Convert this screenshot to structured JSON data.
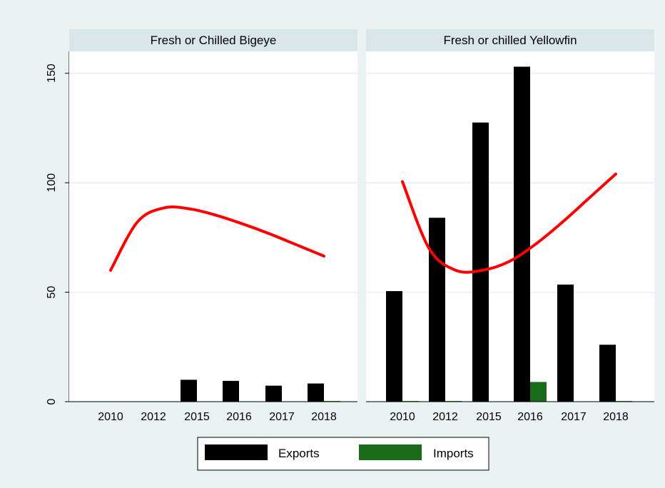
{
  "chart_data": [
    {
      "type": "bar",
      "title": "Fresh or Chilled Bigeye",
      "categories": [
        "2010",
        "2012",
        "2015",
        "2016",
        "2017",
        "2018"
      ],
      "series": [
        {
          "name": "Exports",
          "values": [
            0,
            0,
            10,
            9.5,
            7.3,
            8.3
          ]
        },
        {
          "name": "Imports",
          "values": [
            0,
            0,
            0,
            0,
            0,
            0.3
          ]
        }
      ],
      "fit_line": [
        [
          2010,
          60
        ],
        [
          2011,
          82
        ],
        [
          2012,
          88.5
        ],
        [
          2013,
          88
        ],
        [
          2014,
          85
        ],
        [
          2015,
          81
        ],
        [
          2016,
          76.5
        ],
        [
          2017,
          71.5
        ],
        [
          2018,
          66.5
        ]
      ],
      "ylim": [
        0,
        160
      ],
      "yticks": [
        0,
        50,
        100,
        150
      ]
    },
    {
      "type": "bar",
      "title": "Fresh or chilled Yellowfin",
      "categories": [
        "2010",
        "2012",
        "2015",
        "2016",
        "2017",
        "2018"
      ],
      "series": [
        {
          "name": "Exports",
          "values": [
            50.5,
            84,
            127.5,
            153,
            53.5,
            26
          ]
        },
        {
          "name": "Imports",
          "values": [
            0.3,
            0.3,
            0,
            9,
            0,
            0.3
          ]
        }
      ],
      "fit_line": [
        [
          2010,
          100.5
        ],
        [
          2011,
          70
        ],
        [
          2012,
          60
        ],
        [
          2013,
          60
        ],
        [
          2014,
          64
        ],
        [
          2015,
          72
        ],
        [
          2016,
          82
        ],
        [
          2017,
          93
        ],
        [
          2018,
          104
        ]
      ],
      "ylim": [
        0,
        160
      ],
      "yticks": [
        0,
        50,
        100,
        150
      ]
    }
  ],
  "legend": {
    "items": [
      {
        "label": "Exports",
        "color": "#000000"
      },
      {
        "label": "Imports",
        "color": "#1a6b1a"
      }
    ],
    "placement": "bottom"
  },
  "colors": {
    "fit_line": "#ff0000",
    "exports": "#000000",
    "imports": "#1a6b1a",
    "panel_header": "#d9e6eb",
    "background": "#eaf2f3"
  }
}
